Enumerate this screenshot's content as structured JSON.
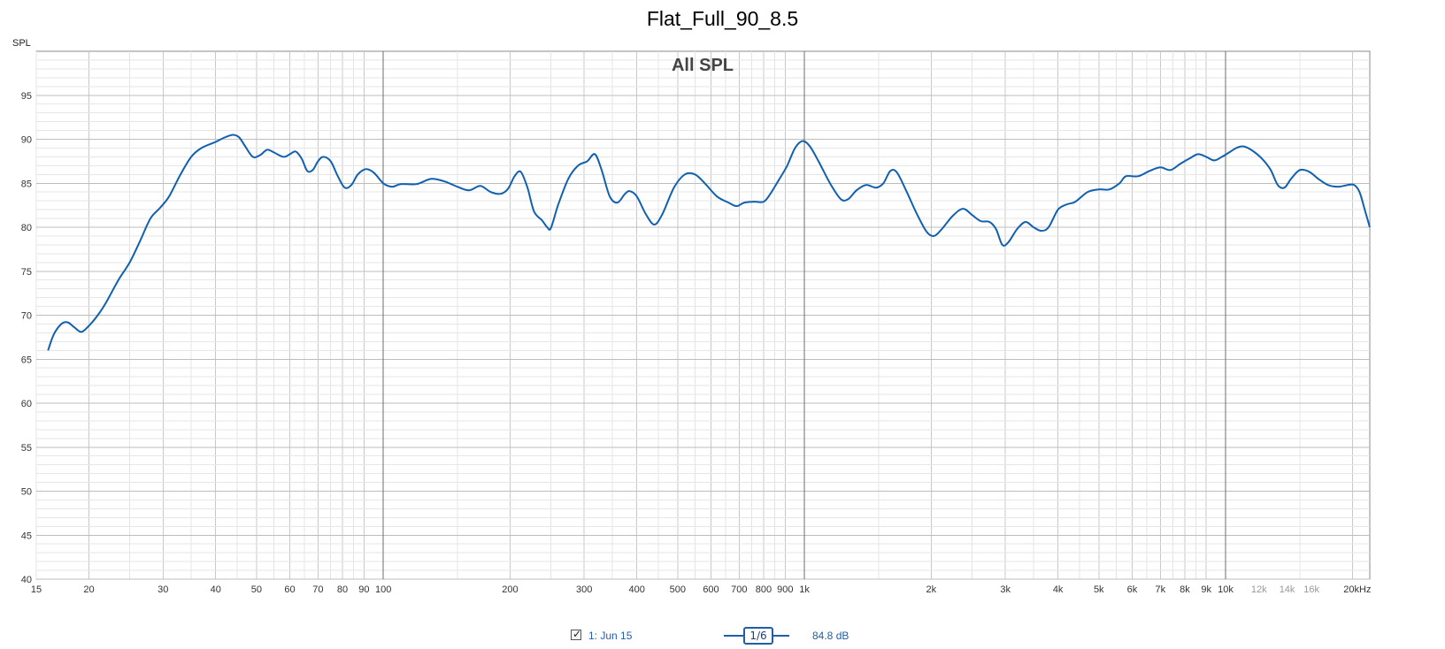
{
  "chart_data": {
    "type": "line",
    "title": "Flat_Full_90_8.5",
    "subtitle": "All SPL",
    "ylabel": "SPL",
    "xscale": "log",
    "xlim": [
      15,
      22000
    ],
    "ylim": [
      40,
      100
    ],
    "grid": true,
    "y_ticks": [
      "40",
      "45",
      "50",
      "55",
      "60",
      "65",
      "70",
      "75",
      "80",
      "85",
      "90",
      "95"
    ],
    "x_ticks": [
      {
        "f": 15,
        "label": "15"
      },
      {
        "f": 20,
        "label": "20"
      },
      {
        "f": 30,
        "label": "30"
      },
      {
        "f": 40,
        "label": "40"
      },
      {
        "f": 50,
        "label": "50"
      },
      {
        "f": 60,
        "label": "60"
      },
      {
        "f": 70,
        "label": "70"
      },
      {
        "f": 80,
        "label": "80"
      },
      {
        "f": 90,
        "label": "90"
      },
      {
        "f": 100,
        "label": "100"
      },
      {
        "f": 200,
        "label": "200"
      },
      {
        "f": 300,
        "label": "300"
      },
      {
        "f": 400,
        "label": "400"
      },
      {
        "f": 500,
        "label": "500"
      },
      {
        "f": 600,
        "label": "600"
      },
      {
        "f": 700,
        "label": "700"
      },
      {
        "f": 800,
        "label": "800"
      },
      {
        "f": 900,
        "label": "900"
      },
      {
        "f": 1000,
        "label": "1k"
      },
      {
        "f": 2000,
        "label": "2k"
      },
      {
        "f": 3000,
        "label": "3k"
      },
      {
        "f": 4000,
        "label": "4k"
      },
      {
        "f": 5000,
        "label": "5k"
      },
      {
        "f": 6000,
        "label": "6k"
      },
      {
        "f": 7000,
        "label": "7k"
      },
      {
        "f": 8000,
        "label": "8k"
      },
      {
        "f": 9000,
        "label": "9k"
      },
      {
        "f": 10000,
        "label": "10k"
      },
      {
        "f": 12000,
        "label": "12k",
        "muted": true
      },
      {
        "f": 14000,
        "label": "14k",
        "muted": true
      },
      {
        "f": 16000,
        "label": "16k",
        "muted": true
      },
      {
        "f": 20000,
        "label": "20kHz"
      }
    ],
    "series": [
      {
        "name": "1: Jun 15",
        "color": "#1060b0",
        "points": [
          [
            16,
            66.0
          ],
          [
            16.5,
            67.8
          ],
          [
            17.2,
            69.0
          ],
          [
            17.8,
            69.2
          ],
          [
            18.5,
            68.6
          ],
          [
            19.2,
            68.1
          ],
          [
            20,
            68.8
          ],
          [
            21,
            70.0
          ],
          [
            22,
            71.5
          ],
          [
            23.5,
            74.0
          ],
          [
            25,
            76.0
          ],
          [
            26.5,
            78.5
          ],
          [
            28,
            81.0
          ],
          [
            29.5,
            82.2
          ],
          [
            31,
            83.5
          ],
          [
            33,
            86.0
          ],
          [
            35,
            88.0
          ],
          [
            37,
            89.0
          ],
          [
            40,
            89.7
          ],
          [
            42,
            90.2
          ],
          [
            44,
            90.5
          ],
          [
            45.5,
            90.2
          ],
          [
            47,
            89.2
          ],
          [
            49,
            88.0
          ],
          [
            51,
            88.2
          ],
          [
            53,
            88.8
          ],
          [
            55,
            88.5
          ],
          [
            58,
            88.0
          ],
          [
            60,
            88.3
          ],
          [
            62,
            88.6
          ],
          [
            64,
            87.8
          ],
          [
            66,
            86.4
          ],
          [
            68,
            86.5
          ],
          [
            70,
            87.5
          ],
          [
            72,
            88.0
          ],
          [
            75,
            87.5
          ],
          [
            78,
            85.8
          ],
          [
            81,
            84.5
          ],
          [
            84,
            84.8
          ],
          [
            87,
            86.0
          ],
          [
            91,
            86.6
          ],
          [
            95,
            86.2
          ],
          [
            100,
            85.0
          ],
          [
            105,
            84.6
          ],
          [
            110,
            84.9
          ],
          [
            120,
            84.9
          ],
          [
            130,
            85.5
          ],
          [
            140,
            85.2
          ],
          [
            150,
            84.6
          ],
          [
            160,
            84.2
          ],
          [
            170,
            84.7
          ],
          [
            180,
            84.0
          ],
          [
            190,
            83.8
          ],
          [
            198,
            84.4
          ],
          [
            205,
            85.8
          ],
          [
            212,
            86.3
          ],
          [
            220,
            84.5
          ],
          [
            228,
            81.8
          ],
          [
            238,
            80.8
          ],
          [
            245,
            80.0
          ],
          [
            250,
            79.9
          ],
          [
            260,
            82.5
          ],
          [
            275,
            85.5
          ],
          [
            290,
            87.0
          ],
          [
            305,
            87.5
          ],
          [
            318,
            88.3
          ],
          [
            330,
            86.5
          ],
          [
            345,
            83.5
          ],
          [
            360,
            82.8
          ],
          [
            375,
            83.8
          ],
          [
            385,
            84.1
          ],
          [
            400,
            83.5
          ],
          [
            420,
            81.5
          ],
          [
            440,
            80.3
          ],
          [
            460,
            81.5
          ],
          [
            490,
            84.5
          ],
          [
            520,
            86.0
          ],
          [
            550,
            86.0
          ],
          [
            580,
            85.0
          ],
          [
            620,
            83.5
          ],
          [
            660,
            82.8
          ],
          [
            690,
            82.4
          ],
          [
            720,
            82.8
          ],
          [
            760,
            82.9
          ],
          [
            800,
            82.9
          ],
          [
            830,
            83.8
          ],
          [
            870,
            85.4
          ],
          [
            910,
            87.0
          ],
          [
            950,
            89.0
          ],
          [
            990,
            89.8
          ],
          [
            1030,
            89.2
          ],
          [
            1080,
            87.5
          ],
          [
            1150,
            85.0
          ],
          [
            1220,
            83.2
          ],
          [
            1270,
            83.2
          ],
          [
            1330,
            84.2
          ],
          [
            1400,
            84.8
          ],
          [
            1480,
            84.5
          ],
          [
            1540,
            85.0
          ],
          [
            1600,
            86.4
          ],
          [
            1660,
            86.2
          ],
          [
            1750,
            84.0
          ],
          [
            1850,
            81.5
          ],
          [
            1950,
            79.5
          ],
          [
            2030,
            79.0
          ],
          [
            2120,
            79.8
          ],
          [
            2250,
            81.3
          ],
          [
            2380,
            82.1
          ],
          [
            2500,
            81.4
          ],
          [
            2620,
            80.7
          ],
          [
            2750,
            80.6
          ],
          [
            2850,
            79.8
          ],
          [
            2950,
            78.0
          ],
          [
            3050,
            78.3
          ],
          [
            3200,
            79.8
          ],
          [
            3350,
            80.6
          ],
          [
            3500,
            80.0
          ],
          [
            3650,
            79.6
          ],
          [
            3800,
            80.0
          ],
          [
            4000,
            82.0
          ],
          [
            4200,
            82.6
          ],
          [
            4400,
            82.9
          ],
          [
            4700,
            84.0
          ],
          [
            5000,
            84.3
          ],
          [
            5300,
            84.3
          ],
          [
            5600,
            85.0
          ],
          [
            5800,
            85.8
          ],
          [
            6200,
            85.8
          ],
          [
            6600,
            86.4
          ],
          [
            7000,
            86.8
          ],
          [
            7400,
            86.5
          ],
          [
            7800,
            87.2
          ],
          [
            8200,
            87.8
          ],
          [
            8600,
            88.3
          ],
          [
            9000,
            88.0
          ],
          [
            9400,
            87.6
          ],
          [
            9800,
            88.0
          ],
          [
            10200,
            88.5
          ],
          [
            10600,
            89.0
          ],
          [
            11000,
            89.2
          ],
          [
            11500,
            88.8
          ],
          [
            12200,
            87.8
          ],
          [
            12800,
            86.5
          ],
          [
            13300,
            84.8
          ],
          [
            13800,
            84.5
          ],
          [
            14300,
            85.5
          ],
          [
            15000,
            86.5
          ],
          [
            15800,
            86.3
          ],
          [
            16600,
            85.5
          ],
          [
            17500,
            84.8
          ],
          [
            18500,
            84.6
          ],
          [
            19500,
            84.8
          ],
          [
            20200,
            84.8
          ],
          [
            20800,
            84.0
          ],
          [
            21400,
            82.0
          ],
          [
            22000,
            80.0
          ]
        ]
      }
    ],
    "legend": {
      "checked": true,
      "series_label": "1: Jun 15",
      "smoothing": "1/6",
      "level": "84.8 dB"
    }
  }
}
